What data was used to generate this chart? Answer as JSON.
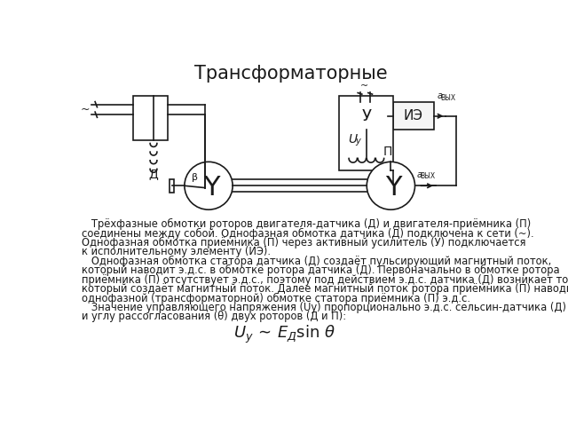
{
  "title": "Трансформаторные",
  "title_fontsize": 15,
  "body_text": [
    "   Трёхфазные обмотки роторов двигателя-датчика (Д) и двигателя-приёмника (П)",
    "соединены между собой. Однофазная обмотка датчика (Д) подключена к сети (~).",
    "Однофазная обмотка приёмника (П) через активный усилитель (У) подключается",
    "к исполнительному элементу (ИЭ).",
    "   Однофазная обмотка статора датчика (Д) создаёт пульсирующий магнитный поток,",
    "который наводит э.д.с. в обмотке ротора датчика (Д). Первоначально в обмотке ротора",
    "приёмника (П) отсутствует э.д.с., поэтому под действием э.д.с. датчика (Д) возникает ток,",
    "который создаёт магнитный поток. Далее магнитный поток ротора приёмника (П) наводит в",
    "однофазной (трансформаторной) обмотке статора приёмника (П) э.д.с.",
    "   Значение управляющего напряжения (Uу) пропорционально э.д.с. сельсин-датчика (Д)",
    "и углу рассогласования (θ) двух роторов (Д и П):"
  ],
  "bg_color": "#ffffff",
  "line_color": "#1a1a1a",
  "text_color": "#1a1a1a"
}
